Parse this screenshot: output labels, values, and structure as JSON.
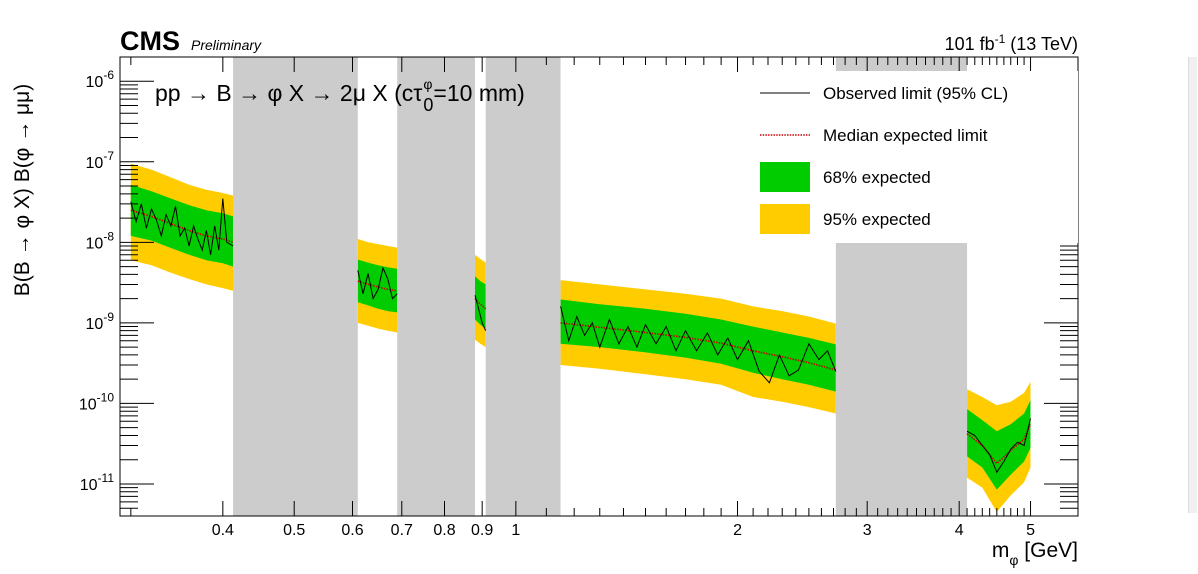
{
  "header": {
    "experiment": "CMS",
    "status": "Preliminary",
    "lumi_main": "101 fb",
    "lumi_sup": "-1",
    "lumi_energy": " (13 TeV)"
  },
  "colors": {
    "band95": "#ffcc00",
    "band68": "#00cc00",
    "observed": "#000000",
    "expected": "#cc0000",
    "veto": "#cccccc"
  },
  "chart_data": {
    "type": "line",
    "title": "",
    "process_label": "pp → B → φ X → 2μ X (cτ",
    "process_sup": "φ",
    "process_sub": "0",
    "process_end": "=10 mm)",
    "xlabel_main": "m",
    "xlabel_sub": "φ",
    "xlabel_end": " [GeV]",
    "ylabel": "B(B → φ X) B(φ → μμ)",
    "x_scale": "log",
    "y_scale": "log",
    "xlim": [
      0.29,
      5.8
    ],
    "ylim": [
      4e-12,
      2e-06
    ],
    "x_ticks": [
      {
        "v": 0.4,
        "label": "0.4"
      },
      {
        "v": 0.5,
        "label": "0.5"
      },
      {
        "v": 0.6,
        "label": "0.6"
      },
      {
        "v": 0.7,
        "label": "0.7"
      },
      {
        "v": 0.8,
        "label": "0.8"
      },
      {
        "v": 0.9,
        "label": "0.9"
      },
      {
        "v": 1,
        "label": "1"
      },
      {
        "v": 2,
        "label": "2"
      },
      {
        "v": 3,
        "label": "3"
      },
      {
        "v": 4,
        "label": "4"
      },
      {
        "v": 5,
        "label": "5"
      }
    ],
    "y_ticks": [
      {
        "v": 1e-06,
        "base": "10",
        "exp": "-6"
      },
      {
        "v": 1e-07,
        "base": "10",
        "exp": "-7"
      },
      {
        "v": 1e-08,
        "base": "10",
        "exp": "-8"
      },
      {
        "v": 1e-09,
        "base": "10",
        "exp": "-9"
      },
      {
        "v": 1e-10,
        "base": "10",
        "exp": "-10"
      },
      {
        "v": 1e-11,
        "base": "10",
        "exp": "-11"
      }
    ],
    "legend": {
      "placement": "top-right",
      "entries": [
        {
          "key": "observed",
          "label": "Observed limit (95% CL)"
        },
        {
          "key": "expected",
          "label": "Median expected limit"
        },
        {
          "key": "band68",
          "label": "68% expected"
        },
        {
          "key": "band95",
          "label": "95% expected"
        }
      ]
    },
    "vetoed_regions": [
      {
        "from": 0.413,
        "to": 0.61
      },
      {
        "from": 0.69,
        "to": 0.88
      },
      {
        "from": 0.91,
        "to": 1.15
      },
      {
        "from": 2.72,
        "to": 4.1
      }
    ],
    "segments": [
      {
        "x": [
          0.3,
          0.32,
          0.34,
          0.36,
          0.38,
          0.4,
          0.413
        ],
        "expected": [
          2.5e-08,
          2.1e-08,
          1.7e-08,
          1.4e-08,
          1.2e-08,
          1.1e-08,
          1e-08
        ],
        "band68": [
          [
            1.2e-08,
            5.2e-08
          ],
          [
            1.05e-08,
            4.3e-08
          ],
          [
            8.5e-09,
            3.5e-08
          ],
          [
            7e-09,
            2.9e-08
          ],
          [
            6e-09,
            2.5e-08
          ],
          [
            5.5e-09,
            2.3e-08
          ],
          [
            5e-09,
            2.1e-08
          ]
        ],
        "band95": [
          [
            6e-09,
            9.5e-08
          ],
          [
            5.2e-09,
            8e-08
          ],
          [
            4.2e-09,
            6.4e-08
          ],
          [
            3.5e-09,
            5.2e-08
          ],
          [
            3e-09,
            4.5e-08
          ],
          [
            2.7e-09,
            4.1e-08
          ],
          [
            2.5e-09,
            3.8e-08
          ]
        ],
        "obs_x": [
          0.3,
          0.305,
          0.31,
          0.315,
          0.32,
          0.325,
          0.33,
          0.335,
          0.34,
          0.345,
          0.35,
          0.355,
          0.36,
          0.365,
          0.37,
          0.375,
          0.38,
          0.385,
          0.39,
          0.395,
          0.4,
          0.405,
          0.413
        ],
        "observed": [
          3.2e-08,
          1.8e-08,
          3e-08,
          1.5e-08,
          2.6e-08,
          1.9e-08,
          1.2e-08,
          2.2e-08,
          1.6e-08,
          2.8e-08,
          1.2e-08,
          1.5e-08,
          9e-09,
          1.6e-08,
          1.1e-08,
          8e-09,
          1.4e-08,
          7e-09,
          1.6e-08,
          8e-09,
          3.5e-08,
          1e-08,
          9e-09
        ]
      },
      {
        "x": [
          0.61,
          0.63,
          0.65,
          0.67,
          0.69
        ],
        "expected": [
          3.3e-09,
          3e-09,
          2.8e-09,
          2.6e-09,
          2.5e-09
        ],
        "band68": [
          [
            1.8e-09,
            6.1e-09
          ],
          [
            1.65e-09,
            5.6e-09
          ],
          [
            1.5e-09,
            5.2e-09
          ],
          [
            1.4e-09,
            4.9e-09
          ],
          [
            1.35e-09,
            4.7e-09
          ]
        ],
        "band95": [
          [
            1e-09,
            1.1e-08
          ],
          [
            9.2e-10,
            1e-08
          ],
          [
            8.5e-10,
            9.5e-09
          ],
          [
            8e-10,
            9e-09
          ],
          [
            7.6e-10,
            8.6e-09
          ]
        ],
        "obs_x": [
          0.61,
          0.62,
          0.63,
          0.64,
          0.65,
          0.66,
          0.67,
          0.68,
          0.69
        ],
        "observed": [
          4.5e-09,
          2.3e-09,
          4.1e-09,
          2e-09,
          2.6e-09,
          4.8e-09,
          3.5e-09,
          2e-09,
          2.3e-09
        ]
      },
      {
        "x": [
          0.88,
          0.895,
          0.91
        ],
        "expected": [
          2e-09,
          1.7e-09,
          1.5e-09
        ],
        "band68": [
          [
            1.1e-09,
            3.8e-09
          ],
          [
            9.5e-10,
            3.3e-09
          ],
          [
            8.5e-10,
            3e-09
          ]
        ],
        "band95": [
          [
            6.2e-10,
            7e-09
          ],
          [
            5.5e-10,
            6.2e-09
          ],
          [
            5e-10,
            5.6e-09
          ]
        ],
        "obs_x": [
          0.88,
          0.89,
          0.9,
          0.91
        ],
        "observed": [
          2.2e-09,
          1.5e-09,
          1e-09,
          8e-10
        ]
      },
      {
        "x": [
          1.15,
          1.3,
          1.5,
          1.7,
          1.9,
          2.1,
          2.3,
          2.5,
          2.72
        ],
        "expected": [
          1e-09,
          8.8e-10,
          7.6e-10,
          6.6e-10,
          5.6e-10,
          4.5e-10,
          3.8e-10,
          3.2e-10,
          2.6e-10
        ],
        "band68": [
          [
            5.5e-10,
            1.95e-09
          ],
          [
            5e-10,
            1.7e-09
          ],
          [
            4.3e-10,
            1.5e-09
          ],
          [
            3.7e-10,
            1.3e-09
          ],
          [
            3.1e-10,
            1.1e-09
          ],
          [
            2.4e-10,
            9e-10
          ],
          [
            2e-10,
            7.6e-10
          ],
          [
            1.7e-10,
            6.5e-10
          ],
          [
            1.4e-10,
            5.4e-10
          ]
        ],
        "band95": [
          [
            3e-10,
            3.4e-09
          ],
          [
            2.7e-10,
            3e-09
          ],
          [
            2.3e-10,
            2.6e-09
          ],
          [
            2e-10,
            2.3e-09
          ],
          [
            1.7e-10,
            2e-09
          ],
          [
            1.2e-10,
            1.6e-09
          ],
          [
            1.05e-10,
            1.4e-09
          ],
          [
            9e-11,
            1.2e-09
          ],
          [
            7.5e-11,
            9.8e-10
          ]
        ],
        "obs_x": [
          1.15,
          1.18,
          1.21,
          1.24,
          1.27,
          1.3,
          1.34,
          1.38,
          1.42,
          1.46,
          1.5,
          1.55,
          1.6,
          1.65,
          1.7,
          1.76,
          1.82,
          1.88,
          1.94,
          2.0,
          2.07,
          2.14,
          2.21,
          2.28,
          2.35,
          2.42,
          2.5,
          2.58,
          2.65,
          2.72
        ],
        "observed": [
          1.6e-09,
          6e-10,
          1.2e-09,
          7e-10,
          1e-09,
          5e-10,
          1.1e-09,
          5.5e-10,
          9e-10,
          5e-10,
          9.5e-10,
          5.5e-10,
          9e-10,
          4.5e-10,
          8e-10,
          4.5e-10,
          7.5e-10,
          4e-10,
          6.5e-10,
          3.5e-10,
          6e-10,
          2.5e-10,
          1.8e-10,
          4e-10,
          2.2e-10,
          2.6e-10,
          5.5e-10,
          3.5e-10,
          4.5e-10,
          2.5e-10
        ]
      },
      {
        "x": [
          4.1,
          4.3,
          4.5,
          4.7,
          4.9,
          5.0
        ],
        "expected": [
          4.2e-11,
          3e-11,
          1.8e-11,
          2.6e-11,
          3.6e-11,
          5.5e-11
        ],
        "band68": [
          [
            2.2e-11,
            8.5e-11
          ],
          [
            1.6e-11,
            6.2e-11
          ],
          [
            8.5e-12,
            4.5e-11
          ],
          [
            1.3e-11,
            5.5e-11
          ],
          [
            1.9e-11,
            7.5e-11
          ],
          [
            2.8e-11,
            1.1e-10
          ]
        ],
        "band95": [
          [
            1.2e-11,
            1.5e-10
          ],
          [
            9e-12,
            1.2e-10
          ],
          [
            4.5e-12,
            9.5e-11
          ],
          [
            7.2e-12,
            1.05e-10
          ],
          [
            1.05e-11,
            1.35e-10
          ],
          [
            1.6e-11,
            1.85e-10
          ]
        ],
        "obs_x": [
          4.1,
          4.2,
          4.3,
          4.4,
          4.5,
          4.6,
          4.7,
          4.8,
          4.9,
          5.0
        ],
        "observed": [
          4.5e-11,
          4e-11,
          3e-11,
          2.3e-11,
          1.4e-11,
          1.9e-11,
          2.7e-11,
          3.3e-11,
          3e-11,
          6.5e-11
        ]
      }
    ]
  }
}
